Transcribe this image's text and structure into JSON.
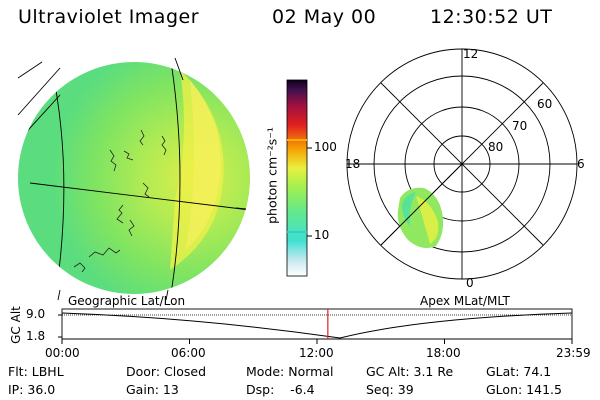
{
  "header": {
    "instrument": "Ultraviolet Imager",
    "date": "02 May 00",
    "time": "12:30:52 UT"
  },
  "left_panel": {
    "caption": "Geographic Lat/Lon"
  },
  "right_panel": {
    "caption": "Apex MLat/MLT",
    "mlt_labels": {
      "top": "12",
      "left": "18",
      "right": "6",
      "bottom": "0"
    },
    "mlat_labels": [
      "60",
      "70",
      "80"
    ]
  },
  "colorbar": {
    "label": "photon cm⁻²s⁻¹",
    "ticks": [
      "100",
      "10"
    ],
    "scale": "log",
    "colors": [
      "#ffffff",
      "#c8e8f0",
      "#40e0d0",
      "#60e890",
      "#a0f050",
      "#e8f040",
      "#f8a000",
      "#e02020",
      "#a01040",
      "#401050",
      "#100018"
    ]
  },
  "timeline": {
    "ylabel": "GC Alt",
    "y_ticks": [
      "9.0",
      "1.8"
    ],
    "x_ticks": [
      "00:00",
      "06:00",
      "12:00",
      "18:00",
      "23:59"
    ],
    "cursor_time_hours": 12.51,
    "cursor_color": "#e02020"
  },
  "info": {
    "flt": "Flt: LBHL",
    "door": "Door: Closed",
    "mode": "Mode: Normal",
    "gc_alt": "GC Alt: 3.1 Re",
    "glat": "GLat: 74.1",
    "ip": "IP: 36.0",
    "gain": "Gain: 13",
    "dsp": "Dsp:    -6.4",
    "seq": "Seq: 39",
    "glon": "GLon: 141.5"
  }
}
